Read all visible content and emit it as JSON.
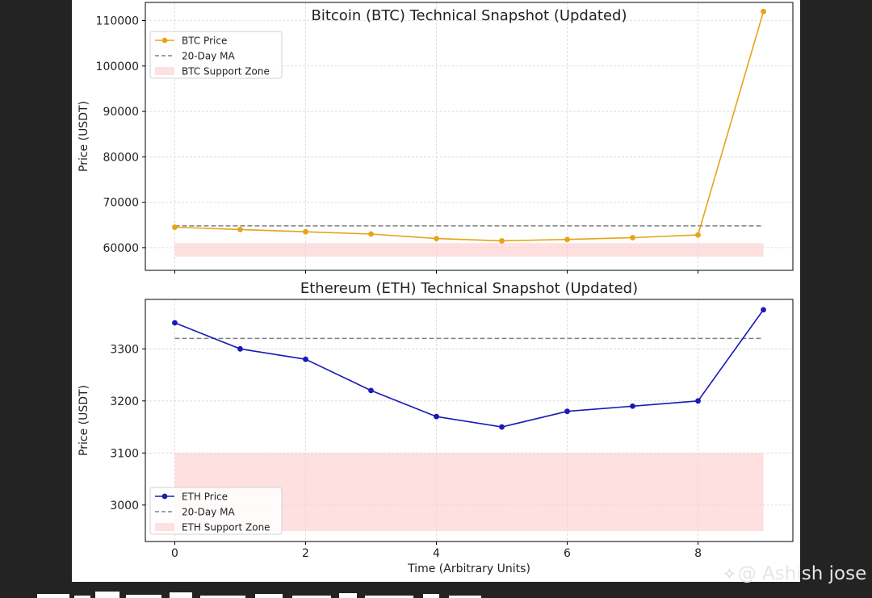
{
  "chart_data": [
    {
      "type": "line",
      "title": "Bitcoin (BTC) Technical Snapshot (Updated)",
      "xlabel": "",
      "ylabel": "Price (USDT)",
      "xlim": [
        -0.45,
        9.45
      ],
      "ylim": [
        55000,
        114000
      ],
      "yticks": [
        60000,
        70000,
        80000,
        90000,
        100000,
        110000
      ],
      "x": [
        0,
        1,
        2,
        3,
        4,
        5,
        6,
        7,
        8,
        9
      ],
      "series": [
        {
          "name": "BTC Price",
          "kind": "line",
          "color": "#e8a317",
          "values": [
            64500,
            64000,
            63500,
            63000,
            62000,
            61500,
            61800,
            62200,
            62800,
            112000
          ]
        },
        {
          "name": "20-Day MA",
          "kind": "hline",
          "color": "#808080",
          "value": 64800
        },
        {
          "name": "BTC Support Zone",
          "kind": "band",
          "color": "#ffcccc",
          "range": [
            58000,
            61000
          ]
        }
      ],
      "legend": "top-left",
      "grid": true
    },
    {
      "type": "line",
      "title": "Ethereum (ETH) Technical Snapshot (Updated)",
      "xlabel": "Time (Arbitrary Units)",
      "ylabel": "Price (USDT)",
      "xlim": [
        -0.45,
        9.45
      ],
      "xticks": [
        0,
        2,
        4,
        6,
        8
      ],
      "ylim": [
        2930,
        3395
      ],
      "yticks": [
        3000,
        3100,
        3200,
        3300
      ],
      "x": [
        0,
        1,
        2,
        3,
        4,
        5,
        6,
        7,
        8,
        9
      ],
      "series": [
        {
          "name": "ETH Price",
          "kind": "line",
          "color": "#1a1ab5",
          "values": [
            3350,
            3300,
            3280,
            3220,
            3170,
            3150,
            3180,
            3190,
            3200,
            3375
          ]
        },
        {
          "name": "20-Day MA",
          "kind": "hline",
          "color": "#808080",
          "value": 3320
        },
        {
          "name": "ETH Support Zone",
          "kind": "band",
          "color": "#ffcccc",
          "range": [
            2950,
            3100
          ]
        }
      ],
      "legend": "bottom-left",
      "grid": true
    }
  ],
  "watermark": {
    "icon": "diamond-logo-icon",
    "text": "@ Ashish jose"
  }
}
